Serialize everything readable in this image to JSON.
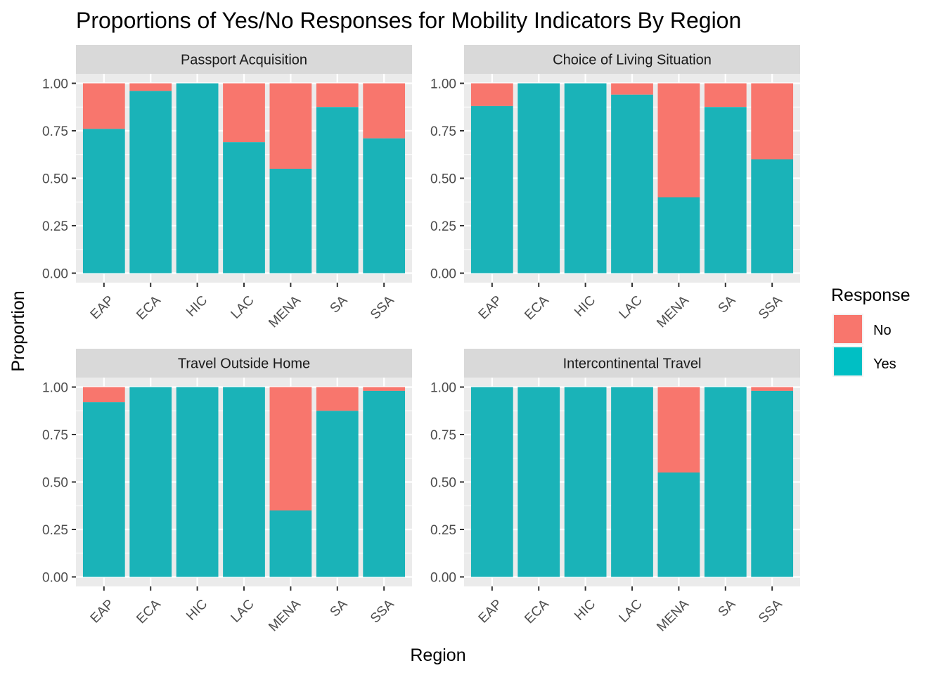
{
  "chart_data": {
    "type": "bar",
    "stacked": true,
    "title": "Proportions of Yes/No Responses for Mobility Indicators By Region",
    "xlabel": "Region",
    "ylabel": "Proportion",
    "ylim": [
      0,
      1
    ],
    "yticks": [
      "0.00",
      "0.25",
      "0.50",
      "0.75",
      "1.00"
    ],
    "categories": [
      "EAP",
      "ECA",
      "HIC",
      "LAC",
      "MENA",
      "SA",
      "SSA"
    ],
    "legend": {
      "title": "Response",
      "position": "right",
      "items": [
        {
          "label": "No",
          "color": "#F8766D"
        },
        {
          "label": "Yes",
          "color": "#00BFC4"
        }
      ]
    },
    "colors": {
      "No": "#F8766D",
      "Yes": "#1AB3B8",
      "panel": "#EBEBEB",
      "strip": "#D9D9D9",
      "grid": "#FFFFFF"
    },
    "panels": [
      {
        "title": "Passport Acquisition",
        "series": [
          {
            "name": "Yes",
            "values": [
              0.76,
              0.96,
              1.0,
              0.69,
              0.55,
              0.875,
              0.71
            ]
          },
          {
            "name": "No",
            "values": [
              0.24,
              0.04,
              0.0,
              0.31,
              0.45,
              0.125,
              0.29
            ]
          }
        ]
      },
      {
        "title": "Choice of Living Situation",
        "series": [
          {
            "name": "Yes",
            "values": [
              0.88,
              1.0,
              1.0,
              0.94,
              0.4,
              0.875,
              0.6
            ]
          },
          {
            "name": "No",
            "values": [
              0.12,
              0.0,
              0.0,
              0.06,
              0.6,
              0.125,
              0.4
            ]
          }
        ]
      },
      {
        "title": "Travel Outside Home",
        "series": [
          {
            "name": "Yes",
            "values": [
              0.92,
              1.0,
              1.0,
              1.0,
              0.35,
              0.875,
              0.98
            ]
          },
          {
            "name": "No",
            "values": [
              0.08,
              0.0,
              0.0,
              0.0,
              0.65,
              0.125,
              0.02
            ]
          }
        ]
      },
      {
        "title": "Intercontinental Travel",
        "series": [
          {
            "name": "Yes",
            "values": [
              1.0,
              1.0,
              1.0,
              1.0,
              0.55,
              1.0,
              0.98
            ]
          },
          {
            "name": "No",
            "values": [
              0.0,
              0.0,
              0.0,
              0.0,
              0.45,
              0.0,
              0.02
            ]
          }
        ]
      }
    ]
  }
}
